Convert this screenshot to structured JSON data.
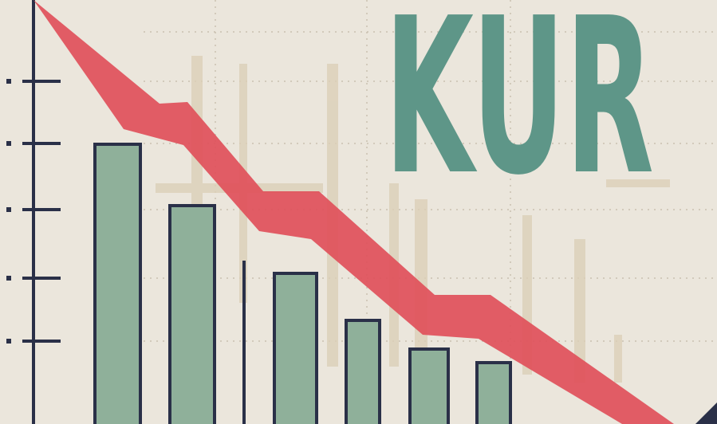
{
  "image": {
    "text": "KUR"
  }
}
